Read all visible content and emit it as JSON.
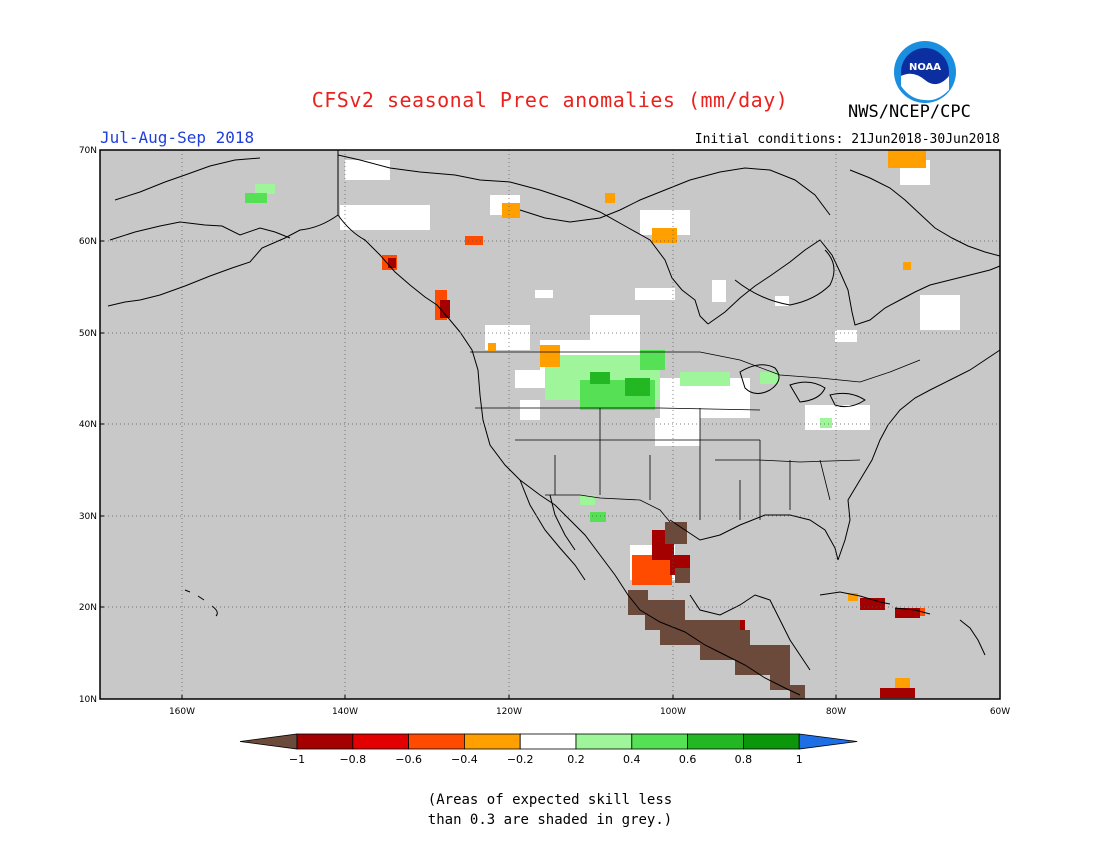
{
  "header": {
    "title": "CFSv2 seasonal Prec anomalies (mm/day)",
    "period": "Jul-Aug-Sep 2018",
    "initial_conditions": "Initial conditions: 21Jun2018-30Jun2018",
    "agency": "NWS/NCEP/CPC",
    "logo_text": "NOAA"
  },
  "map": {
    "lat_labels": [
      "70N",
      "60N",
      "50N",
      "40N",
      "30N",
      "20N",
      "10N"
    ],
    "lon_labels": [
      "160W",
      "140W",
      "120W",
      "100W",
      "80W",
      "60W"
    ],
    "background_color": "#c8c8c8"
  },
  "legend": {
    "ticks": [
      "−1",
      "−0.8",
      "−0.6",
      "−0.4",
      "−0.2",
      "0.2",
      "0.4",
      "0.6",
      "0.8",
      "1"
    ],
    "colors": [
      "#6b4a3c",
      "#a50000",
      "#e30000",
      "#ff4b00",
      "#ff9f00",
      "#ffffff",
      "#9ff59a",
      "#55e055",
      "#23b823",
      "#0c960c",
      "#1e6ee6"
    ]
  },
  "footnote": {
    "line1": "(Areas of expected skill less",
    "line2": "than 0.3 are shaded in grey.)"
  }
}
